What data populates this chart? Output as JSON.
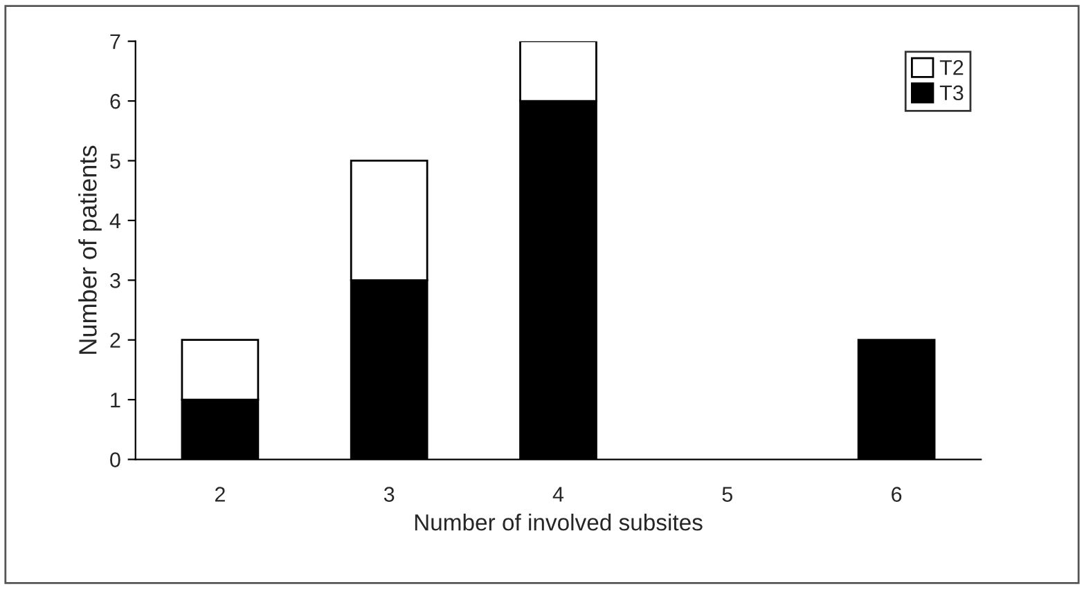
{
  "chart_data": {
    "type": "bar",
    "stacked": true,
    "xlabel": "Number of involved subsites",
    "ylabel": "Number of patients",
    "categories": [
      "2",
      "3",
      "4",
      "5",
      "6"
    ],
    "series": [
      {
        "name": "T3",
        "color": "#000000",
        "values": [
          1,
          3,
          6,
          0,
          2
        ]
      },
      {
        "name": "T2",
        "color": "#ffffff",
        "values": [
          1,
          2,
          1,
          0,
          0
        ]
      }
    ],
    "ylim": [
      0,
      7
    ],
    "yticks": [
      0,
      1,
      2,
      3,
      4,
      5,
      6,
      7
    ],
    "grid": false,
    "legend": "top right"
  }
}
